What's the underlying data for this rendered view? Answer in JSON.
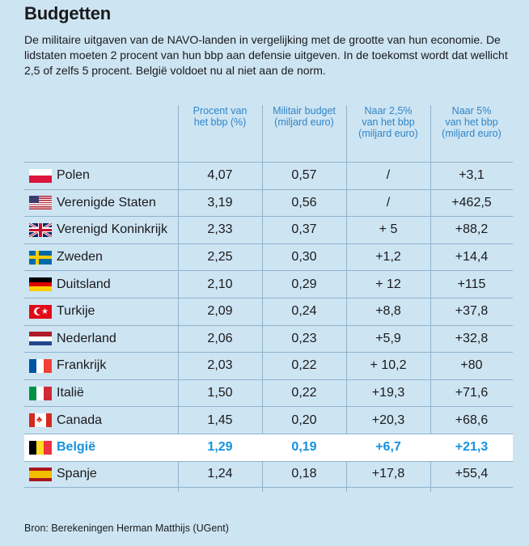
{
  "title": "Budgetten",
  "intro": "De militaire uitgaven van de NAVO-landen in vergelijking met de grootte van hun economie. De lidstaten moeten 2 procent van hun bbp aan defensie uitgeven. In de toekomst wordt dat wellicht 2,5 of zelfs 5 procent. België voldoet nu al niet aan de norm.",
  "headers": [
    {
      "line1": "Procent van",
      "line2": "het bbp (%)",
      "line3": ""
    },
    {
      "line1": "Militair budget",
      "line2": "(miljard euro)",
      "line3": ""
    },
    {
      "line1": "Naar 2,5%",
      "line2": "van het bbp",
      "line3": "(miljard euro)"
    },
    {
      "line1": "Naar 5%",
      "line2": "van het bbp",
      "line3": "(miljard euro)"
    }
  ],
  "rows": [
    {
      "country": "Polen",
      "flag": "poland-flag-icon",
      "pct": "4,07",
      "budget": "0,57",
      "to25": "/",
      "to5": "+3,1"
    },
    {
      "country": "Verenigde Staten",
      "flag": "usa-flag-icon",
      "pct": "3,19",
      "budget": "0,56",
      "to25": "/",
      "to5": "+462,5"
    },
    {
      "country": "Verenigd Koninkrijk",
      "flag": "uk-flag-icon",
      "pct": "2,33",
      "budget": "0,37",
      "to25": "+ 5",
      "to5": "+88,2"
    },
    {
      "country": "Zweden",
      "flag": "sweden-flag-icon",
      "pct": "2,25",
      "budget": "0,30",
      "to25": "+1,2",
      "to5": "+14,4"
    },
    {
      "country": "Duitsland",
      "flag": "germany-flag-icon",
      "pct": "2,10",
      "budget": "0,29",
      "to25": "+ 12",
      "to5": "+115"
    },
    {
      "country": "Turkije",
      "flag": "turkey-flag-icon",
      "pct": "2,09",
      "budget": "0,24",
      "to25": "+8,8",
      "to5": "+37,8"
    },
    {
      "country": "Nederland",
      "flag": "netherlands-flag-icon",
      "pct": "2,06",
      "budget": "0,23",
      "to25": "+5,9",
      "to5": "+32,8"
    },
    {
      "country": "Frankrijk",
      "flag": "france-flag-icon",
      "pct": "2,03",
      "budget": "0,22",
      "to25": "+ 10,2",
      "to5": "+80"
    },
    {
      "country": "Italië",
      "flag": "italy-flag-icon",
      "pct": "1,50",
      "budget": "0,22",
      "to25": "+19,3",
      "to5": "+71,6"
    },
    {
      "country": "Canada",
      "flag": "canada-flag-icon",
      "pct": "1,45",
      "budget": "0,20",
      "to25": "+20,3",
      "to5": "+68,6"
    },
    {
      "country": "België",
      "flag": "belgium-flag-icon",
      "pct": "1,29",
      "budget": "0,19",
      "to25": "+6,7",
      "to5": "+21,3"
    },
    {
      "country": "Spanje",
      "flag": "spain-flag-icon",
      "pct": "1,24",
      "budget": "0,18",
      "to25": "+17,8",
      "to5": "+55,4"
    }
  ],
  "highlight_country": "België",
  "colors": {
    "background": "#cde4f3",
    "header_text": "#2f86c7",
    "highlight_text": "#1592e0",
    "highlight_bg": "#ffffff"
  },
  "source": "Bron: Berekeningen Herman Matthijs (UGent)"
}
